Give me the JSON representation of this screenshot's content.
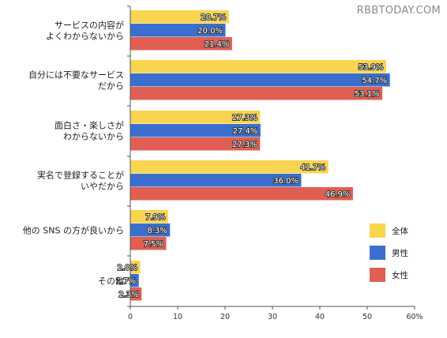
{
  "watermark": "RBBTODAY.COM",
  "chart_data": {
    "type": "bar",
    "orientation": "horizontal",
    "categories": [
      [
        "サービスの内容が",
        "よくわからないから"
      ],
      [
        "自分には不要なサービス",
        "だから"
      ],
      [
        "面白さ・楽しさが",
        "わからないから"
      ],
      [
        "実名で登録することが",
        "いやだから"
      ],
      [
        "他の SNS の方が良いから"
      ],
      [
        "その他"
      ]
    ],
    "series": [
      {
        "name": "全体",
        "color": "#f9d44f",
        "values": [
          20.7,
          53.9,
          27.3,
          41.7,
          7.9,
          2.0
        ],
        "labels": [
          "20.7%",
          "53.9%",
          "27.3%",
          "41.7%",
          "7.9%",
          "2.0%"
        ]
      },
      {
        "name": "男性",
        "color": "#3a6fcf",
        "values": [
          20.0,
          54.7,
          27.4,
          36.0,
          8.3,
          1.7
        ],
        "labels": [
          "20.0%",
          "54.7%",
          "27.4%",
          "36.0%",
          "8.3%",
          "1.7%"
        ]
      },
      {
        "name": "女性",
        "color": "#e05f52",
        "values": [
          21.4,
          53.1,
          27.3,
          46.9,
          7.5,
          2.3
        ],
        "labels": [
          "21.4%",
          "53.1%",
          "27.3%",
          "46.9%",
          "7.5%",
          "2.3%"
        ]
      }
    ],
    "xlim": [
      0,
      60
    ],
    "xticks": [
      "0",
      "10",
      "20",
      "30",
      "40",
      "50",
      "60%"
    ],
    "legend_position": "right"
  }
}
